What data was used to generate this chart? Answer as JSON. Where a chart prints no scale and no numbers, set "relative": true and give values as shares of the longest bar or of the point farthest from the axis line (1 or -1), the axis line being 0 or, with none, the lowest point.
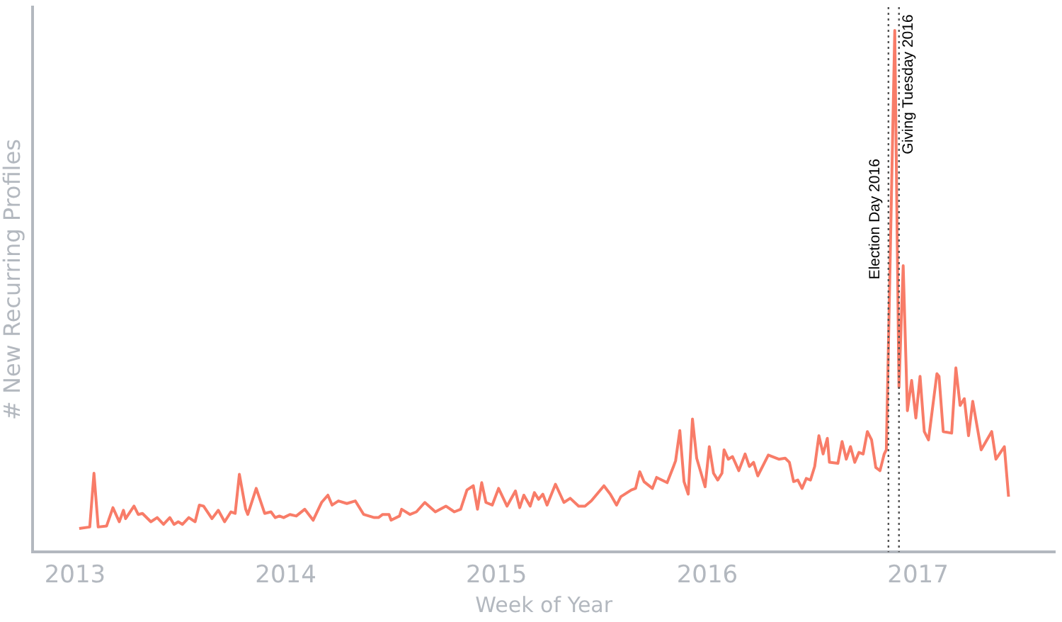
{
  "chart_data": {
    "type": "line",
    "relative": true,
    "xlabel": "Week of Year",
    "ylabel": "# New Recurring Profiles",
    "xlim": [
      2012.8,
      2017.65
    ],
    "xticks": [
      2013,
      2014,
      2015,
      2016,
      2017
    ],
    "grid": false,
    "legend": false,
    "marker": "none",
    "line_style": "solid",
    "series": [
      {
        "color": "#f87c68",
        "x": [
          2013.02,
          2013.07,
          2013.09,
          2013.11,
          2013.15,
          2013.18,
          2013.21,
          2013.23,
          2013.24,
          2013.28,
          2013.3,
          2013.32,
          2013.36,
          2013.39,
          2013.42,
          2013.45,
          2013.47,
          2013.49,
          2013.51,
          2013.54,
          2013.57,
          2013.59,
          2013.61,
          2013.65,
          2013.68,
          2013.71,
          2013.74,
          2013.76,
          2013.78,
          2013.81,
          2013.82,
          2013.86,
          2013.9,
          2013.93,
          2013.95,
          2013.97,
          2013.99,
          2014.02,
          2014.05,
          2014.09,
          2014.13,
          2014.17,
          2014.2,
          2014.22,
          2014.25,
          2014.29,
          2014.33,
          2014.37,
          2014.42,
          2014.44,
          2014.46,
          2014.49,
          2014.5,
          2014.54,
          2014.55,
          2014.59,
          2014.62,
          2014.66,
          2014.71,
          2014.76,
          2014.8,
          2014.83,
          2014.86,
          2014.89,
          2014.91,
          2014.93,
          2014.95,
          2014.98,
          2015.01,
          2015.05,
          2015.09,
          2015.11,
          2015.13,
          2015.16,
          2015.18,
          2015.2,
          2015.22,
          2015.24,
          2015.28,
          2015.32,
          2015.35,
          2015.39,
          2015.42,
          2015.45,
          2015.51,
          2015.54,
          2015.57,
          2015.59,
          2015.64,
          2015.66,
          2015.68,
          2015.7,
          2015.74,
          2015.76,
          2015.81,
          2015.84,
          2015.85,
          2015.87,
          2015.89,
          2015.91,
          2015.93,
          2015.95,
          2015.99,
          2016.01,
          2016.03,
          2016.05,
          2016.07,
          2016.08,
          2016.1,
          2016.12,
          2016.15,
          2016.18,
          2016.2,
          2016.22,
          2016.24,
          2016.29,
          2016.34,
          2016.37,
          2016.39,
          2016.41,
          2016.43,
          2016.45,
          2016.47,
          2016.49,
          2016.51,
          2016.53,
          2016.55,
          2016.57,
          2016.58,
          2016.62,
          2016.64,
          2016.66,
          2016.68,
          2016.7,
          2016.72,
          2016.74,
          2016.76,
          2016.78,
          2016.8,
          2016.82,
          2016.84,
          2016.85,
          2016.89,
          2016.91,
          2016.93,
          2016.95,
          2016.97,
          2016.99,
          2017.01,
          2017.03,
          2017.05,
          2017.09,
          2017.1,
          2017.12,
          2017.16,
          2017.18,
          2017.2,
          2017.22,
          2017.24,
          2017.26,
          2017.3,
          2017.35,
          2017.37,
          2017.41,
          2017.43
        ],
        "values": [
          0.045,
          0.048,
          0.151,
          0.048,
          0.05,
          0.085,
          0.058,
          0.08,
          0.064,
          0.088,
          0.072,
          0.074,
          0.058,
          0.066,
          0.053,
          0.066,
          0.053,
          0.058,
          0.053,
          0.066,
          0.058,
          0.09,
          0.088,
          0.064,
          0.08,
          0.058,
          0.077,
          0.074,
          0.149,
          0.082,
          0.072,
          0.122,
          0.074,
          0.077,
          0.066,
          0.069,
          0.066,
          0.072,
          0.069,
          0.082,
          0.061,
          0.095,
          0.109,
          0.09,
          0.098,
          0.093,
          0.098,
          0.072,
          0.066,
          0.066,
          0.072,
          0.072,
          0.061,
          0.069,
          0.082,
          0.072,
          0.077,
          0.095,
          0.077,
          0.088,
          0.077,
          0.082,
          0.119,
          0.127,
          0.082,
          0.133,
          0.095,
          0.09,
          0.122,
          0.088,
          0.117,
          0.085,
          0.109,
          0.088,
          0.114,
          0.101,
          0.111,
          0.09,
          0.13,
          0.095,
          0.103,
          0.088,
          0.088,
          0.098,
          0.127,
          0.111,
          0.09,
          0.106,
          0.119,
          0.122,
          0.154,
          0.135,
          0.122,
          0.143,
          0.133,
          0.164,
          0.175,
          0.233,
          0.135,
          0.111,
          0.255,
          0.18,
          0.125,
          0.202,
          0.151,
          0.138,
          0.151,
          0.196,
          0.178,
          0.183,
          0.156,
          0.188,
          0.164,
          0.172,
          0.146,
          0.186,
          0.178,
          0.18,
          0.172,
          0.135,
          0.138,
          0.122,
          0.141,
          0.138,
          0.164,
          0.223,
          0.188,
          0.218,
          0.172,
          0.17,
          0.212,
          0.178,
          0.202,
          0.172,
          0.191,
          0.188,
          0.231,
          0.215,
          0.162,
          0.156,
          0.188,
          0.196,
          1,
          0.316,
          0.549,
          0.271,
          0.329,
          0.257,
          0.337,
          0.231,
          0.215,
          0.342,
          0.337,
          0.231,
          0.228,
          0.353,
          0.281,
          0.294,
          0.223,
          0.289,
          0.196,
          0.231,
          0.178,
          0.202,
          0.106
        ]
      }
    ],
    "ref_lines": [
      {
        "axis": "x",
        "value": 2016.86,
        "label": "Election Day 2016",
        "color": "#555555",
        "line_style": "dotted"
      },
      {
        "axis": "x",
        "value": 2016.91,
        "label": "Giving Tuesday 2016",
        "color": "#555555",
        "line_style": "dotted"
      }
    ]
  }
}
